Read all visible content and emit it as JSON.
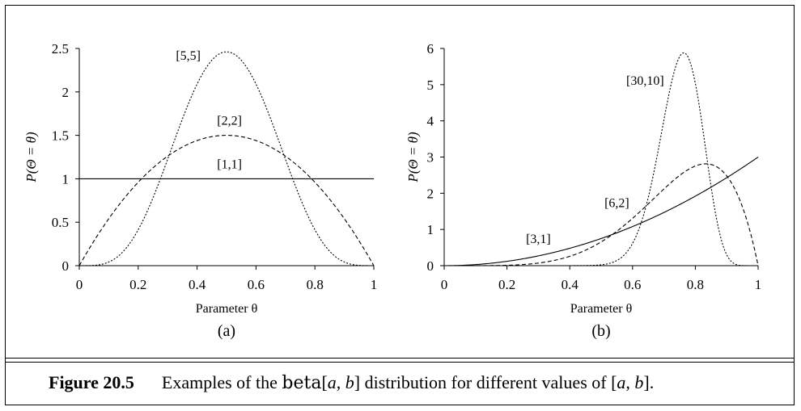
{
  "caption": {
    "figure_label": "Figure 20.5",
    "pre": "Examples of the ",
    "func": "beta",
    "a": "a",
    "b": "b",
    "mid": " distribution for different values of ",
    "post": "."
  },
  "chart_data": [
    {
      "type": "line",
      "panel_label": "(a)",
      "xlabel": "Parameter θ",
      "ylabel": "P(Θ = θ)",
      "xlim": [
        0,
        1
      ],
      "ylim": [
        0,
        2.5
      ],
      "xticks": [
        "0",
        "0.2",
        "0.4",
        "0.6",
        "0.8",
        "1"
      ],
      "yticks": [
        "0",
        "0.5",
        "1",
        "1.5",
        "2",
        "2.5"
      ],
      "series": [
        {
          "name": "[1,1]",
          "a": 1,
          "b": 1,
          "style": "solid",
          "label_at": [
            0.51,
            1.12
          ]
        },
        {
          "name": "[2,2]",
          "a": 2,
          "b": 2,
          "style": "dashed",
          "label_at": [
            0.51,
            1.62
          ]
        },
        {
          "name": "[5,5]",
          "a": 5,
          "b": 5,
          "style": "dotted",
          "label_at": [
            0.37,
            2.37
          ]
        }
      ]
    },
    {
      "type": "line",
      "panel_label": "(b)",
      "xlabel": "Parameter θ",
      "ylabel": "P(Θ = θ)",
      "xlim": [
        0,
        1
      ],
      "ylim": [
        0,
        6
      ],
      "xticks": [
        "0",
        "0.2",
        "0.4",
        "0.6",
        "0.8",
        "1"
      ],
      "yticks": [
        "0",
        "1",
        "2",
        "3",
        "4",
        "5",
        "6"
      ],
      "series": [
        {
          "name": "[3,1]",
          "a": 3,
          "b": 1,
          "style": "solid",
          "label_at": [
            0.3,
            0.62
          ]
        },
        {
          "name": "[6,2]",
          "a": 6,
          "b": 2,
          "style": "dashed",
          "label_at": [
            0.55,
            1.62
          ]
        },
        {
          "name": "[30,10]",
          "a": 30,
          "b": 10,
          "style": "dotted",
          "label_at": [
            0.64,
            5.0
          ]
        }
      ]
    }
  ]
}
